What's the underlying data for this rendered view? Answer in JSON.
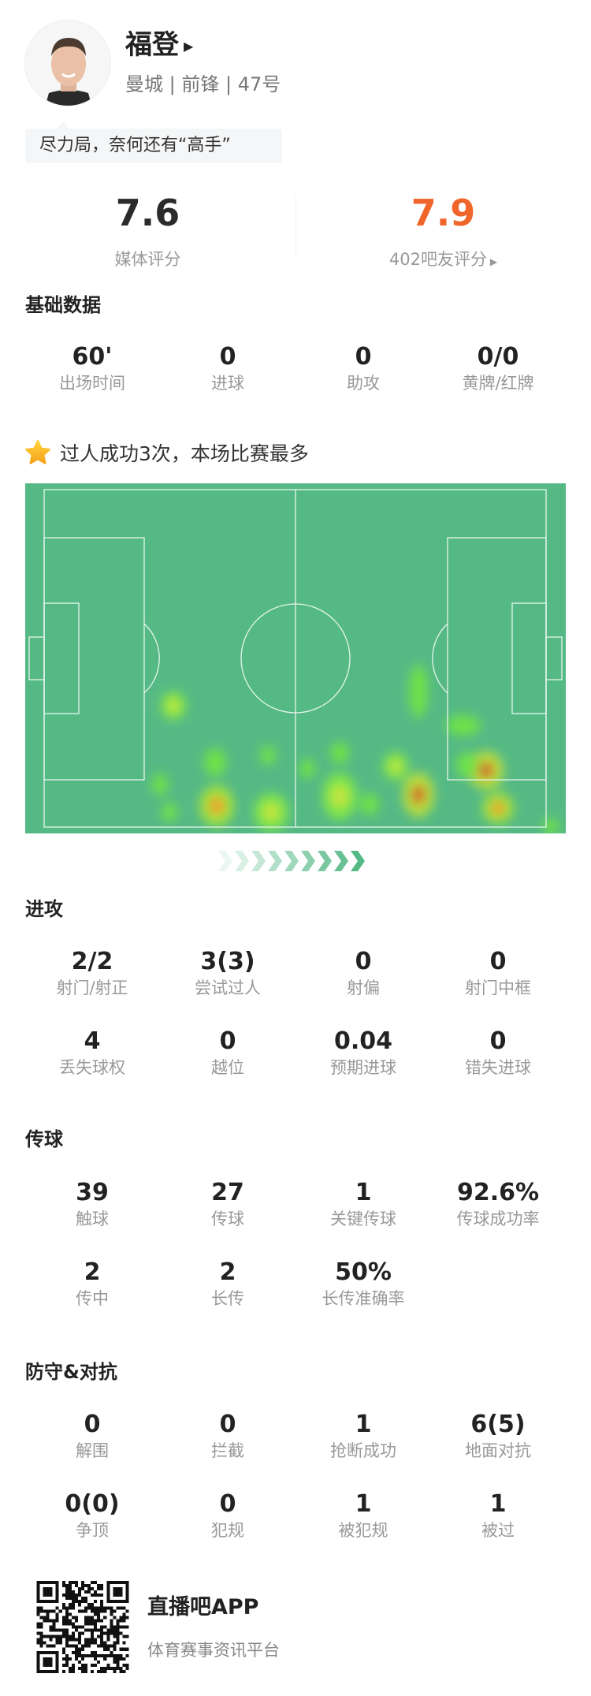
{
  "player": {
    "name": "福登",
    "team": "曼城",
    "position": "前锋",
    "number": "47号",
    "comment": "尽力局，奈何还有“高手”"
  },
  "ratings": {
    "media": {
      "value": "7.6",
      "label": "媒体评分"
    },
    "fans": {
      "value": "7.9",
      "label": "402吧友评分",
      "color": "#f0652a"
    }
  },
  "basic": {
    "title": "基础数据",
    "items": [
      {
        "v": "60'",
        "l": "出场时间"
      },
      {
        "v": "0",
        "l": "进球"
      },
      {
        "v": "0",
        "l": "助攻"
      },
      {
        "v": "0/0",
        "l": "黄牌/红牌"
      }
    ]
  },
  "highlight": {
    "icon": "star-icon",
    "text": "过人成功3次，本场比赛最多"
  },
  "heatmap": {
    "pitch_color": "#55b985",
    "attack_direction": "right"
  },
  "attack": {
    "title": "进攻",
    "items": [
      {
        "v": "2/2",
        "l": "射门/射正"
      },
      {
        "v": "3(3)",
        "l": "尝试过人"
      },
      {
        "v": "0",
        "l": "射偏"
      },
      {
        "v": "0",
        "l": "射门中框"
      },
      {
        "v": "4",
        "l": "丢失球权"
      },
      {
        "v": "0",
        "l": "越位"
      },
      {
        "v": "0.04",
        "l": "预期进球"
      },
      {
        "v": "0",
        "l": "错失进球"
      }
    ]
  },
  "passing": {
    "title": "传球",
    "items": [
      {
        "v": "39",
        "l": "触球"
      },
      {
        "v": "27",
        "l": "传球"
      },
      {
        "v": "1",
        "l": "关键传球"
      },
      {
        "v": "92.6%",
        "l": "传球成功率"
      },
      {
        "v": "2",
        "l": "传中"
      },
      {
        "v": "2",
        "l": "长传"
      },
      {
        "v": "50%",
        "l": "长传准确率"
      }
    ]
  },
  "defense": {
    "title": "防守&对抗",
    "items": [
      {
        "v": "0",
        "l": "解围"
      },
      {
        "v": "0",
        "l": "拦截"
      },
      {
        "v": "1",
        "l": "抢断成功"
      },
      {
        "v": "6(5)",
        "l": "地面对抗"
      },
      {
        "v": "0(0)",
        "l": "争顶"
      },
      {
        "v": "0",
        "l": "犯规"
      },
      {
        "v": "1",
        "l": "被犯规"
      },
      {
        "v": "1",
        "l": "被过"
      }
    ]
  },
  "footer": {
    "app": "直播吧APP",
    "slogan": "体育赛事资讯平台"
  }
}
